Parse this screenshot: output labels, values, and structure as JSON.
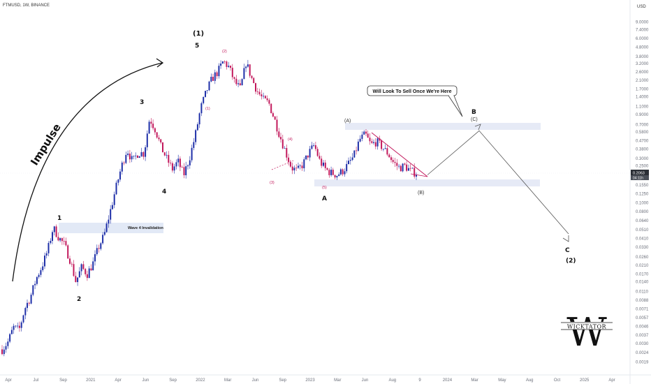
{
  "header": {
    "symbol": "FTMUSD, 1W, BINANCE",
    "currency": "USD"
  },
  "price_tags": {
    "last": "0.2063",
    "timer": "04:11h"
  },
  "chart_data": {
    "type": "candlestick",
    "title": "FTMUSD, 1W, BINANCE",
    "y_scale": "log",
    "ylim": [
      0.0014,
      14
    ],
    "y_ticks": [
      "9.0000",
      "7.4000",
      "6.0000",
      "4.8000",
      "3.8000",
      "3.2000",
      "2.6000",
      "2.1000",
      "1.7000",
      "1.4000",
      "1.1000",
      "0.9000",
      "0.7000",
      "0.5800",
      "0.4700",
      "0.3800",
      "0.3000",
      "0.2500",
      "0.2000",
      "0.1550",
      "0.1250",
      "0.1000",
      "0.0800",
      "0.0640",
      "0.0510",
      "0.0410",
      "0.0330",
      "0.0260",
      "0.0210",
      "0.0170",
      "0.0140",
      "0.0110",
      "0.0088",
      "0.0071",
      "0.0057",
      "0.0046",
      "0.0037",
      "0.0030",
      "0.0024",
      "0.0019"
    ],
    "x_ticks": [
      "Apr",
      "Jul",
      "Sep",
      "2021",
      "Apr",
      "Jun",
      "Sep",
      "2022",
      "Mar",
      "Jun",
      "Sep",
      "2023",
      "Mar",
      "Jun",
      "Aug",
      "9",
      "2024",
      "Mar",
      "May",
      "Aug",
      "Oct",
      "2025",
      "Apr"
    ],
    "price_path": [
      0.0026,
      0.0031,
      0.0045,
      0.0042,
      0.0072,
      0.0096,
      0.015,
      0.0205,
      0.03,
      0.054,
      0.042,
      0.035,
      0.024,
      0.014,
      0.02,
      0.017,
      0.022,
      0.033,
      0.045,
      0.078,
      0.14,
      0.24,
      0.38,
      0.28,
      0.35,
      0.34,
      0.82,
      0.62,
      0.4,
      0.3,
      0.23,
      0.28,
      0.2,
      0.3,
      0.52,
      1.05,
      1.6,
      2.2,
      2.6,
      3.4,
      2.9,
      2.0,
      1.7,
      3.3,
      2.2,
      1.6,
      1.3,
      1.2,
      0.8,
      0.52,
      0.35,
      0.24,
      0.22,
      0.26,
      0.34,
      0.42,
      0.28,
      0.23,
      0.21,
      0.2,
      0.22,
      0.26,
      0.32,
      0.48,
      0.55,
      0.42,
      0.46,
      0.4,
      0.34,
      0.27,
      0.24,
      0.25,
      0.22,
      0.21
    ],
    "series": [
      {
        "name": "projection",
        "points": [
          [
            "Aug 2023",
            0.2
          ],
          [
            "Jan 2024",
            0.6
          ],
          [
            "Oct 2024",
            0.046
          ]
        ]
      }
    ],
    "annotations": {
      "impulse_label": "Impulse",
      "waves": [
        "(1)",
        "1",
        "2",
        "3",
        "4",
        "5",
        "A",
        "B",
        "C",
        "(2)"
      ],
      "sub_waves_red": [
        "(1)",
        "(2)",
        "(3)",
        "(4)",
        "(5)"
      ],
      "sub_waves": [
        "(A)",
        "(B)",
        "(C)"
      ],
      "callout": "Will Look To Sell Once We're Here",
      "invalidation_label": "Wave 4 Invalidation"
    },
    "zones": [
      {
        "name": "wave-4-invalidation",
        "range": [
          0.0485,
          0.058
        ]
      },
      {
        "name": "resistance-zone",
        "range": [
          0.6,
          0.72
        ]
      },
      {
        "name": "support-zone",
        "range": [
          0.145,
          0.168
        ]
      }
    ],
    "legend": "none",
    "grid": false
  },
  "watermark": {
    "monogram": "W",
    "text": "WICKTATOR"
  }
}
